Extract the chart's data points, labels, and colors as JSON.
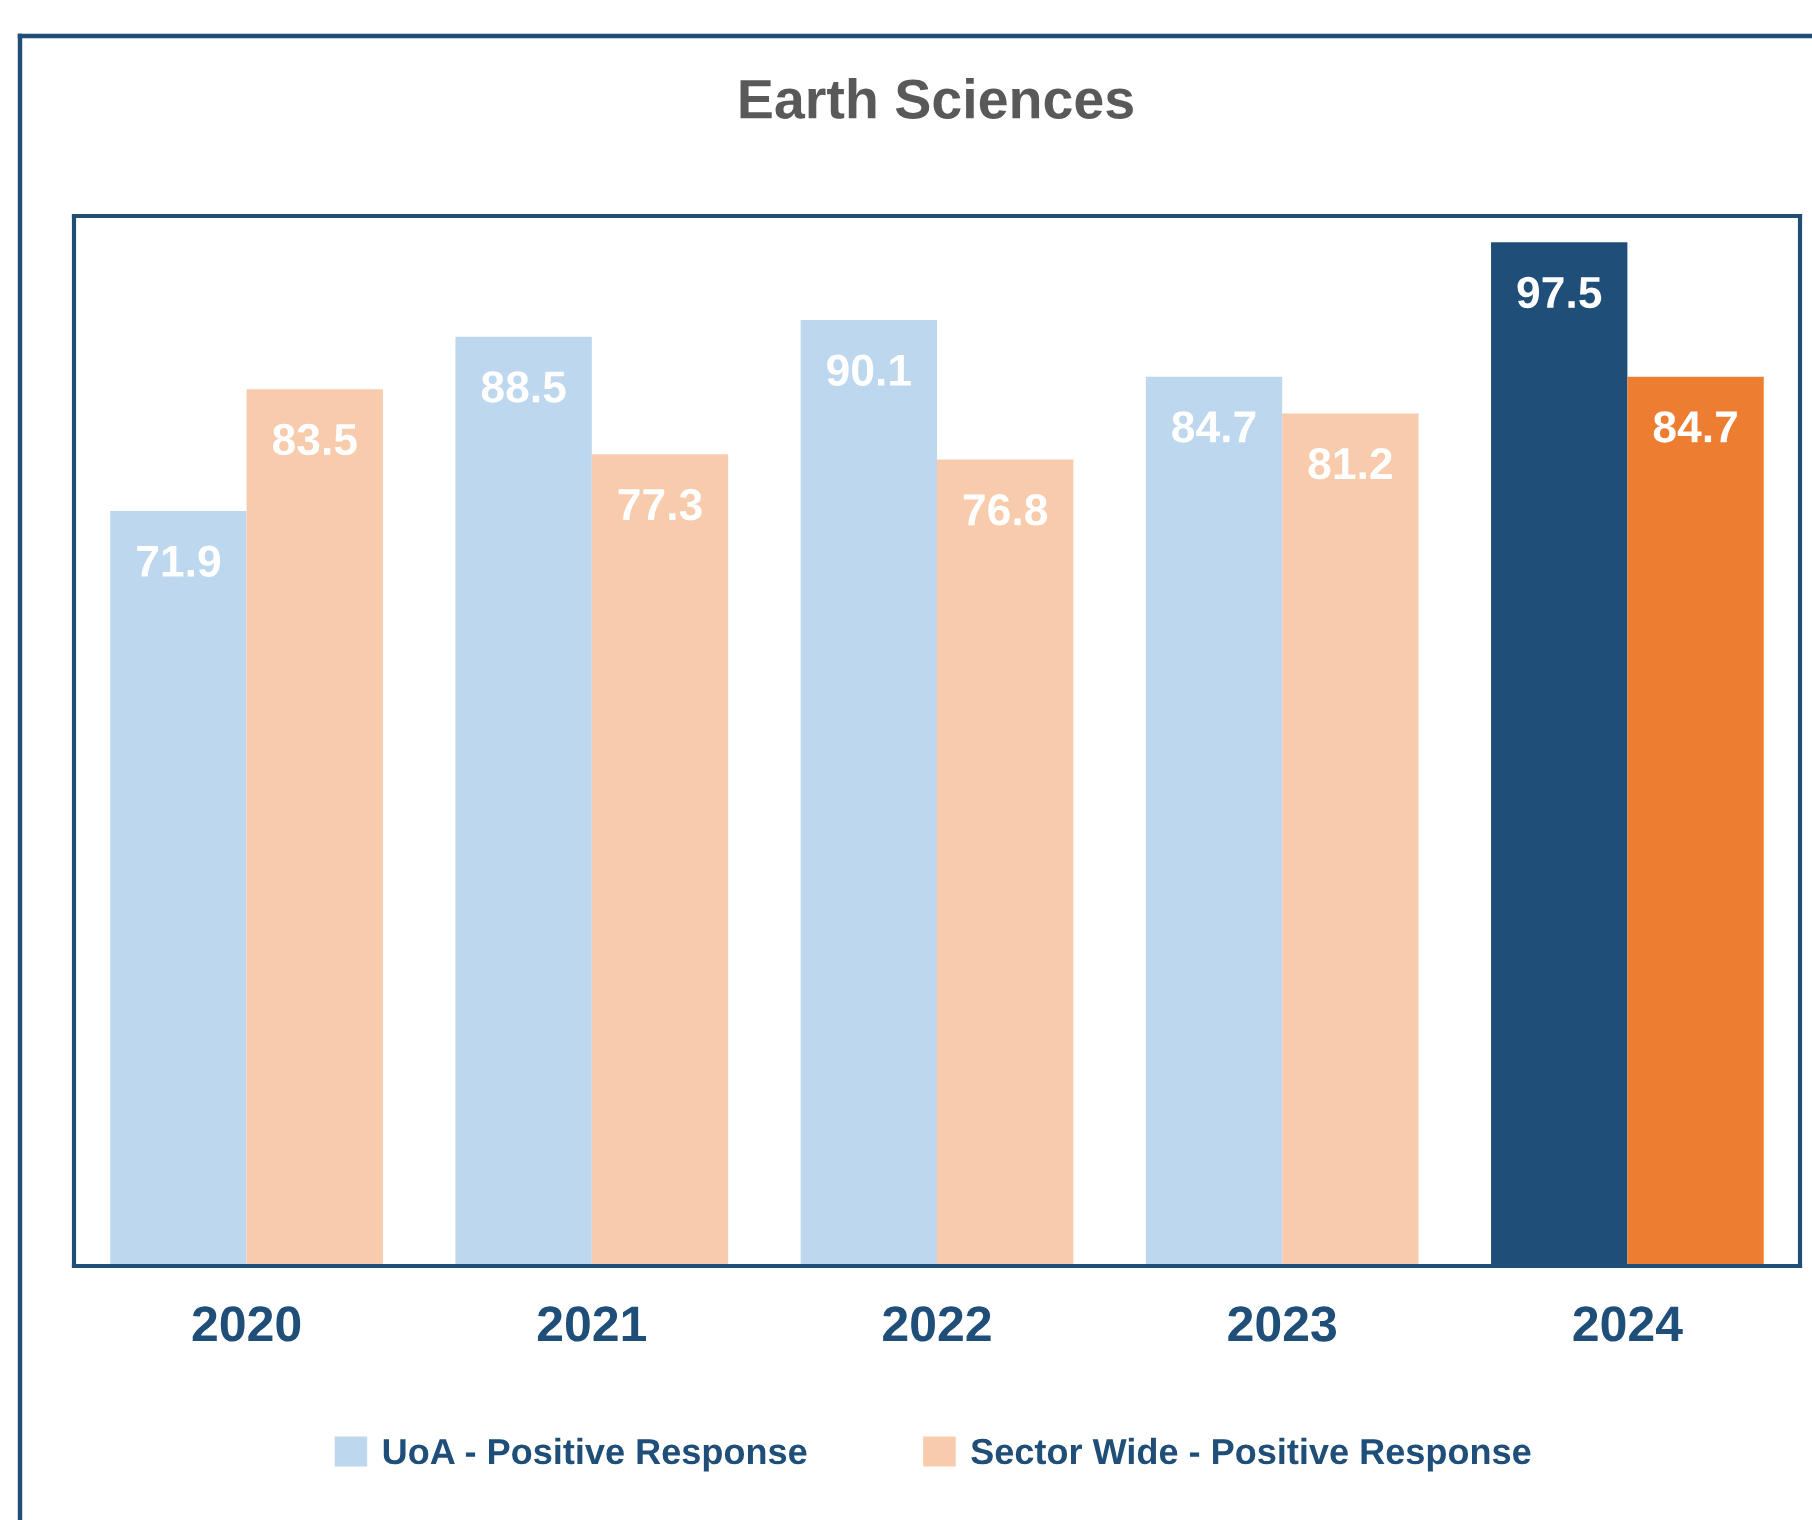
{
  "chart_data": {
    "type": "bar",
    "title": "Earth Sciences",
    "categories": [
      "2020",
      "2021",
      "2022",
      "2023",
      "2024"
    ],
    "series": [
      {
        "name": "UoA - Positive Response",
        "color": "#bdd7ee",
        "colors": [
          "#bdd7ee",
          "#bdd7ee",
          "#bdd7ee",
          "#bdd7ee",
          "#1f4e79"
        ],
        "values": [
          71.9,
          88.5,
          90.1,
          84.7,
          97.5
        ]
      },
      {
        "name": "Sector Wide - Positive Response",
        "color": "#f8cbad",
        "colors": [
          "#f8cbad",
          "#f8cbad",
          "#f8cbad",
          "#f8cbad",
          "#ed7d31"
        ],
        "values": [
          83.5,
          77.3,
          76.8,
          81.2,
          84.7
        ]
      }
    ],
    "ylim": [
      0,
      100
    ],
    "data_labels": true,
    "legend": "bottom",
    "tick_labels": "x"
  }
}
